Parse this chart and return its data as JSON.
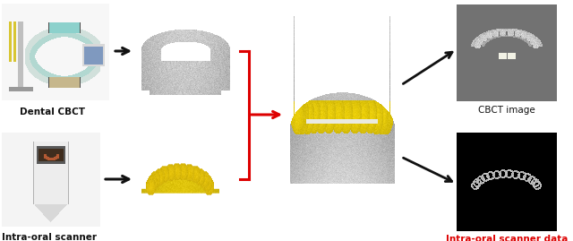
{
  "fig_width": 6.4,
  "fig_height": 2.69,
  "dpi": 100,
  "bg_color": "#ffffff",
  "labels": {
    "dental_cbct": "Dental CBCT",
    "intra_oral": "Intra-oral scanner",
    "cbct_image": "CBCT image",
    "intra_oral_data": "Intra-oral scanner data"
  },
  "label_fontsize": 7.5,
  "arrow_black": "#111111",
  "arrow_red": "#dd0000",
  "yellow_teeth": "#dddd00",
  "cbct_bg": "#808080",
  "io_border": "#ffdd00",
  "positions": {
    "c1x": 0.08,
    "r_top": 0.7,
    "r_bot": 0.27,
    "c2x": 0.27,
    "c3x": 0.52,
    "r_mid": 0.5,
    "c4x": 0.8
  }
}
